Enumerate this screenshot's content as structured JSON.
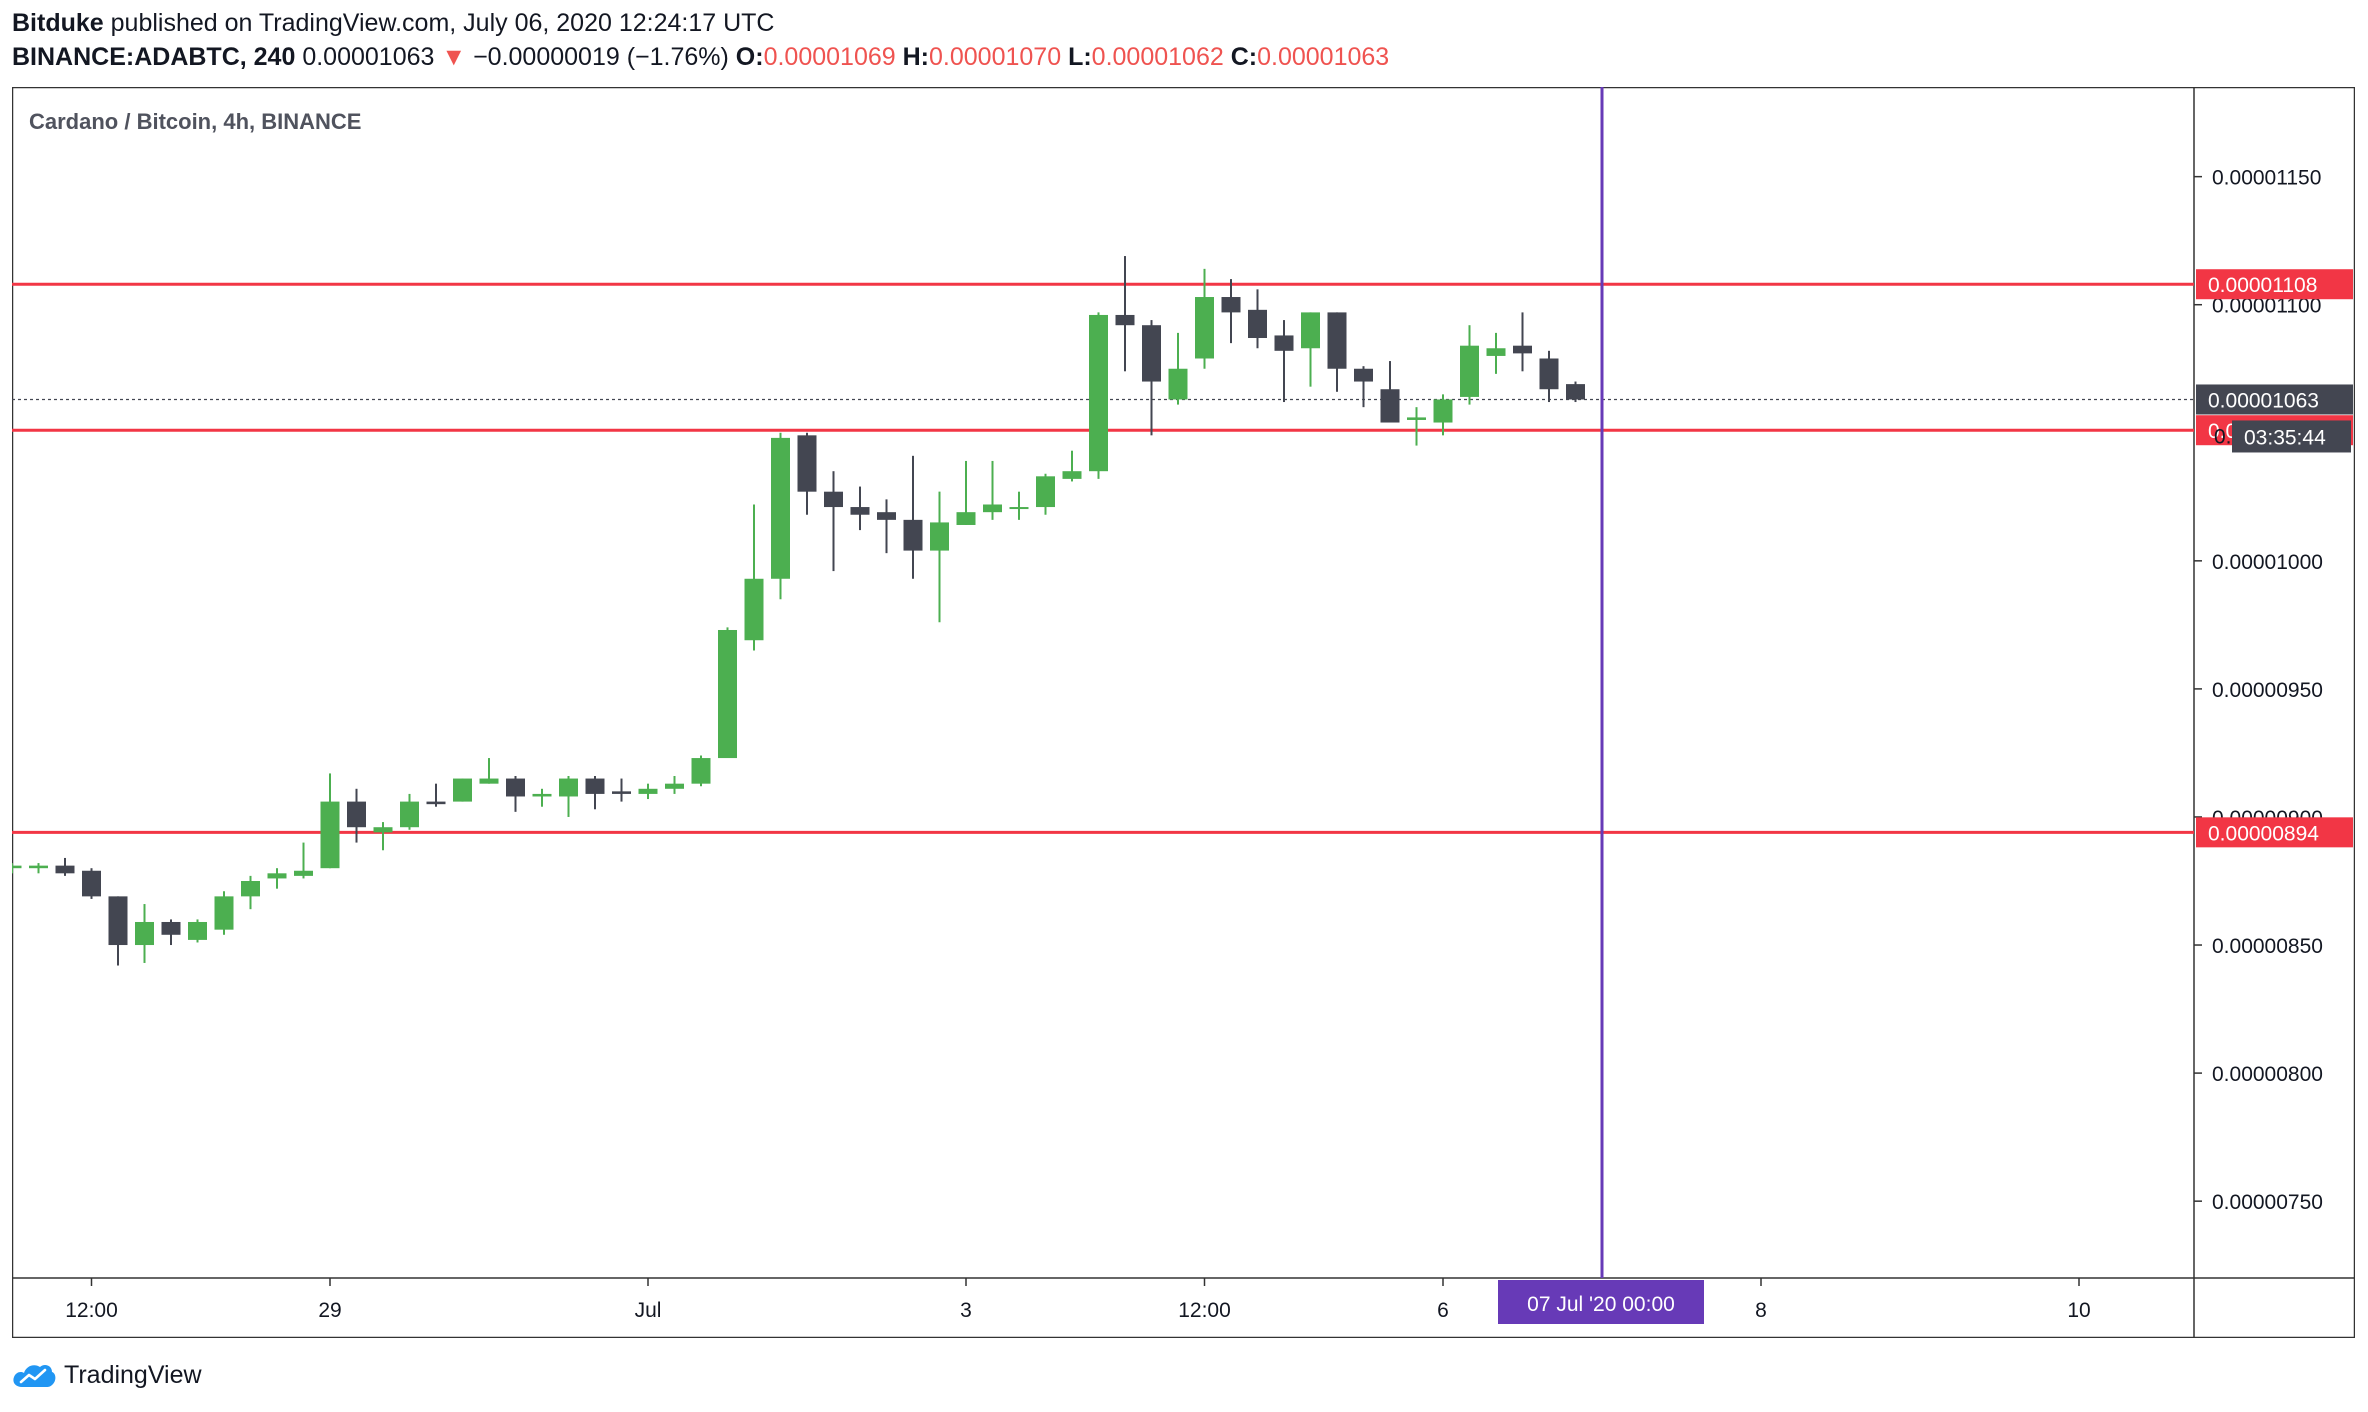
{
  "header": {
    "author": "Bitduke",
    "published_text": "published on TradingView.com, July 06, 2020 12:24:17 UTC",
    "symbol": "BINANCE:ADABTC, 240",
    "last": "0.00001063",
    "change_arrow": "▼",
    "change": "−0.00000019 (−1.76%)",
    "o_label": "O:",
    "o_value": "0.00001069",
    "h_label": "H:",
    "h_value": "0.00001070",
    "l_label": "L:",
    "l_value": "0.00001062",
    "c_label": "C:",
    "c_value": "0.00001063"
  },
  "footer": {
    "brand": "TradingView",
    "logo_icon": "tradingview-cloud-icon"
  },
  "chart_data": {
    "type": "candlestick",
    "title": "Cardano / Bitcoin, 4h, BINANCE",
    "ylim": [
      7.2e-06,
      1.185e-05
    ],
    "y_ticks": [
      "0.00001150",
      "0.00001100",
      "0.00001000",
      "0.00000950",
      "0.00000900",
      "0.00000850",
      "0.00000800",
      "0.00000750"
    ],
    "x_ticks": [
      "12:00",
      "29",
      "Jul",
      "3",
      "12:00",
      "6",
      "8",
      "10"
    ],
    "x_tick_bar_index": [
      3,
      12,
      24,
      36,
      45,
      54,
      66,
      78
    ],
    "colors": {
      "up": "#4caf50",
      "down": "#434651",
      "hline": "#f23645",
      "vline": "#673ab7",
      "price_tag": "#434651"
    },
    "horizontal_lines": [
      {
        "price": 1.108e-05,
        "label": "0.00001108"
      },
      {
        "price": 1.051e-05,
        "label": "0.00001051"
      },
      {
        "price": 8.94e-06,
        "label": "0.00000894"
      }
    ],
    "last_price": {
      "price": 1.063e-05,
      "label": "0.00001063",
      "countdown": "03:35:44",
      "hidden_label": "0."
    },
    "vertical_line": {
      "bar_index": 60,
      "label": "07 Jul '20   00:00"
    },
    "candles": [
      {
        "o": 8.8e-06,
        "h": 8.82e-06,
        "l": 8.78e-06,
        "c": 8.81e-06
      },
      {
        "o": 8.8e-06,
        "h": 8.82e-06,
        "l": 8.78e-06,
        "c": 8.81e-06
      },
      {
        "o": 8.81e-06,
        "h": 8.84e-06,
        "l": 8.77e-06,
        "c": 8.78e-06
      },
      {
        "o": 8.79e-06,
        "h": 8.8e-06,
        "l": 8.68e-06,
        "c": 8.69e-06
      },
      {
        "o": 8.69e-06,
        "h": 8.69e-06,
        "l": 8.42e-06,
        "c": 8.5e-06
      },
      {
        "o": 8.5e-06,
        "h": 8.66e-06,
        "l": 8.43e-06,
        "c": 8.59e-06
      },
      {
        "o": 8.59e-06,
        "h": 8.6e-06,
        "l": 8.5e-06,
        "c": 8.54e-06
      },
      {
        "o": 8.52e-06,
        "h": 8.6e-06,
        "l": 8.51e-06,
        "c": 8.59e-06
      },
      {
        "o": 8.56e-06,
        "h": 8.71e-06,
        "l": 8.54e-06,
        "c": 8.69e-06
      },
      {
        "o": 8.69e-06,
        "h": 8.77e-06,
        "l": 8.64e-06,
        "c": 8.75e-06
      },
      {
        "o": 8.76e-06,
        "h": 8.8e-06,
        "l": 8.72e-06,
        "c": 8.78e-06
      },
      {
        "o": 8.77e-06,
        "h": 8.9e-06,
        "l": 8.76e-06,
        "c": 8.79e-06
      },
      {
        "o": 8.8e-06,
        "h": 9.17e-06,
        "l": 8.8e-06,
        "c": 9.06e-06
      },
      {
        "o": 9.06e-06,
        "h": 9.11e-06,
        "l": 8.9e-06,
        "c": 8.96e-06
      },
      {
        "o": 8.94e-06,
        "h": 8.98e-06,
        "l": 8.87e-06,
        "c": 8.96e-06
      },
      {
        "o": 8.96e-06,
        "h": 9.09e-06,
        "l": 8.95e-06,
        "c": 9.06e-06
      },
      {
        "o": 9.06e-06,
        "h": 9.13e-06,
        "l": 9.04e-06,
        "c": 9.05e-06
      },
      {
        "o": 9.06e-06,
        "h": 9.15e-06,
        "l": 9.06e-06,
        "c": 9.15e-06
      },
      {
        "o": 9.13e-06,
        "h": 9.23e-06,
        "l": 9.13e-06,
        "c": 9.15e-06
      },
      {
        "o": 9.15e-06,
        "h": 9.16e-06,
        "l": 9.02e-06,
        "c": 9.08e-06
      },
      {
        "o": 9.08e-06,
        "h": 9.11e-06,
        "l": 9.04e-06,
        "c": 9.09e-06
      },
      {
        "o": 9.08e-06,
        "h": 9.16e-06,
        "l": 9e-06,
        "c": 9.15e-06
      },
      {
        "o": 9.15e-06,
        "h": 9.16e-06,
        "l": 9.03e-06,
        "c": 9.09e-06
      },
      {
        "o": 9.1e-06,
        "h": 9.15e-06,
        "l": 9.06e-06,
        "c": 9.09e-06
      },
      {
        "o": 9.09e-06,
        "h": 9.13e-06,
        "l": 9.07e-06,
        "c": 9.11e-06
      },
      {
        "o": 9.11e-06,
        "h": 9.16e-06,
        "l": 9.09e-06,
        "c": 9.13e-06
      },
      {
        "o": 9.13e-06,
        "h": 9.24e-06,
        "l": 9.12e-06,
        "c": 9.23e-06
      },
      {
        "o": 9.23e-06,
        "h": 9.74e-06,
        "l": 9.23e-06,
        "c": 9.73e-06
      },
      {
        "o": 9.69e-06,
        "h": 1.022e-05,
        "l": 9.65e-06,
        "c": 9.93e-06
      },
      {
        "o": 9.93e-06,
        "h": 1.05e-05,
        "l": 9.85e-06,
        "c": 1.048e-05
      },
      {
        "o": 1.049e-05,
        "h": 1.05e-05,
        "l": 1.018e-05,
        "c": 1.027e-05
      },
      {
        "o": 1.027e-05,
        "h": 1.035e-05,
        "l": 9.96e-06,
        "c": 1.021e-05
      },
      {
        "o": 1.021e-05,
        "h": 1.029e-05,
        "l": 1.012e-05,
        "c": 1.018e-05
      },
      {
        "o": 1.019e-05,
        "h": 1.024e-05,
        "l": 1.003e-05,
        "c": 1.016e-05
      },
      {
        "o": 1.016e-05,
        "h": 1.041e-05,
        "l": 9.93e-06,
        "c": 1.004e-05
      },
      {
        "o": 1.004e-05,
        "h": 1.027e-05,
        "l": 9.76e-06,
        "c": 1.015e-05
      },
      {
        "o": 1.014e-05,
        "h": 1.039e-05,
        "l": 1.014e-05,
        "c": 1.019e-05
      },
      {
        "o": 1.019e-05,
        "h": 1.039e-05,
        "l": 1.016e-05,
        "c": 1.022e-05
      },
      {
        "o": 1.021e-05,
        "h": 1.027e-05,
        "l": 1.016e-05,
        "c": 1.021e-05
      },
      {
        "o": 1.021e-05,
        "h": 1.034e-05,
        "l": 1.018e-05,
        "c": 1.033e-05
      },
      {
        "o": 1.032e-05,
        "h": 1.043e-05,
        "l": 1.031e-05,
        "c": 1.035e-05
      },
      {
        "o": 1.035e-05,
        "h": 1.097e-05,
        "l": 1.032e-05,
        "c": 1.096e-05
      },
      {
        "o": 1.096e-05,
        "h": 1.119e-05,
        "l": 1.074e-05,
        "c": 1.092e-05
      },
      {
        "o": 1.092e-05,
        "h": 1.094e-05,
        "l": 1.049e-05,
        "c": 1.07e-05
      },
      {
        "o": 1.063e-05,
        "h": 1.089e-05,
        "l": 1.061e-05,
        "c": 1.075e-05
      },
      {
        "o": 1.079e-05,
        "h": 1.114e-05,
        "l": 1.075e-05,
        "c": 1.103e-05
      },
      {
        "o": 1.103e-05,
        "h": 1.11e-05,
        "l": 1.085e-05,
        "c": 1.097e-05
      },
      {
        "o": 1.098e-05,
        "h": 1.106e-05,
        "l": 1.083e-05,
        "c": 1.087e-05
      },
      {
        "o": 1.088e-05,
        "h": 1.094e-05,
        "l": 1.062e-05,
        "c": 1.082e-05
      },
      {
        "o": 1.083e-05,
        "h": 1.097e-05,
        "l": 1.068e-05,
        "c": 1.097e-05
      },
      {
        "o": 1.097e-05,
        "h": 1.097e-05,
        "l": 1.066e-05,
        "c": 1.075e-05
      },
      {
        "o": 1.075e-05,
        "h": 1.076e-05,
        "l": 1.06e-05,
        "c": 1.07e-05
      },
      {
        "o": 1.067e-05,
        "h": 1.078e-05,
        "l": 1.055e-05,
        "c": 1.054e-05
      },
      {
        "o": 1.055e-05,
        "h": 1.06e-05,
        "l": 1.045e-05,
        "c": 1.056e-05
      },
      {
        "o": 1.054e-05,
        "h": 1.065e-05,
        "l": 1.049e-05,
        "c": 1.063e-05
      },
      {
        "o": 1.064e-05,
        "h": 1.092e-05,
        "l": 1.061e-05,
        "c": 1.084e-05
      },
      {
        "o": 1.08e-05,
        "h": 1.089e-05,
        "l": 1.073e-05,
        "c": 1.083e-05
      },
      {
        "o": 1.084e-05,
        "h": 1.097e-05,
        "l": 1.074e-05,
        "c": 1.081e-05
      },
      {
        "o": 1.079e-05,
        "h": 1.082e-05,
        "l": 1.062e-05,
        "c": 1.067e-05
      },
      {
        "o": 1.069e-05,
        "h": 1.07e-05,
        "l": 1.062e-05,
        "c": 1.063e-05
      }
    ]
  }
}
